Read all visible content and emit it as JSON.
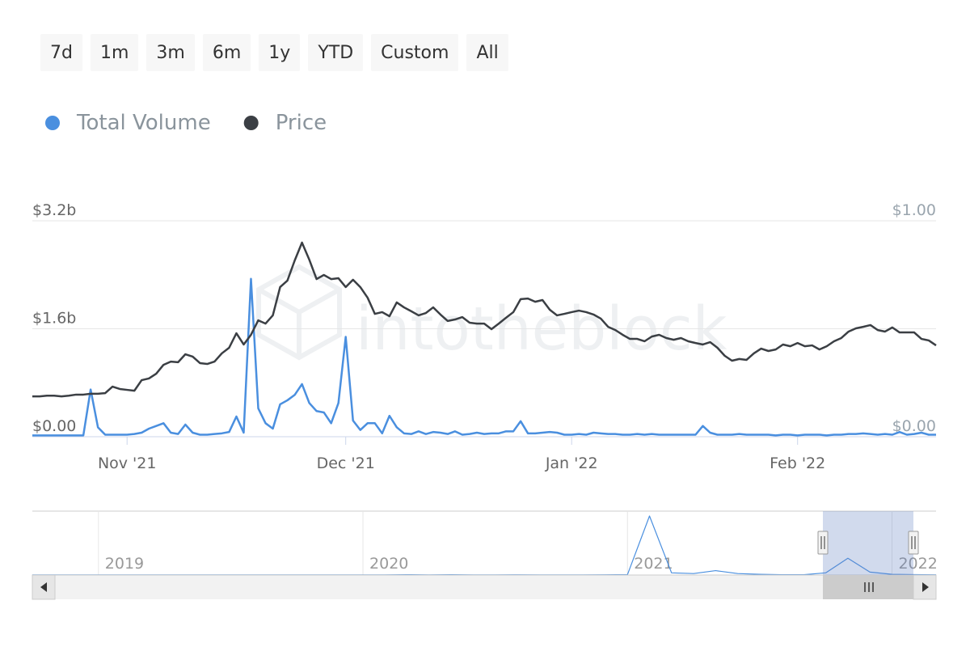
{
  "range_buttons": [
    "7d",
    "1m",
    "3m",
    "6m",
    "1y",
    "YTD",
    "Custom",
    "All"
  ],
  "watermark": "intotheblock",
  "chart_data": [
    {
      "type": "line",
      "categories": [
        null,
        null,
        null,
        null,
        null,
        null,
        null,
        null,
        null,
        null,
        null,
        null,
        null,
        "Nov '21",
        null,
        null,
        null,
        null,
        null,
        null,
        null,
        null,
        null,
        null,
        null,
        null,
        null,
        null,
        null,
        null,
        null,
        null,
        null,
        null,
        null,
        null,
        null,
        null,
        null,
        null,
        null,
        null,
        null,
        "Dec '21",
        null,
        null,
        null,
        null,
        null,
        null,
        null,
        null,
        null,
        null,
        null,
        null,
        null,
        null,
        null,
        null,
        null,
        null,
        null,
        null,
        null,
        null,
        null,
        null,
        null,
        null,
        null,
        null,
        null,
        null,
        "Jan '22",
        null,
        null,
        null,
        null,
        null,
        null,
        null,
        null,
        null,
        null,
        null,
        null,
        null,
        null,
        null,
        null,
        null,
        null,
        null,
        null,
        null,
        null,
        null,
        null,
        null,
        null,
        null,
        null,
        null,
        null,
        "Feb '22",
        null,
        null,
        null,
        null,
        null,
        null,
        null,
        null,
        null,
        null,
        null,
        null,
        null,
        null,
        null,
        null,
        null,
        null,
        null
      ],
      "series": [
        {
          "name": "Total Volume",
          "color": "#4a8fdf",
          "values": [
            0.02,
            0.02,
            0.02,
            0.02,
            0.02,
            0.02,
            0.02,
            0.02,
            0.7,
            0.14,
            0.03,
            0.03,
            0.03,
            0.03,
            0.04,
            0.06,
            0.12,
            0.16,
            0.2,
            0.06,
            0.04,
            0.18,
            0.06,
            0.03,
            0.03,
            0.04,
            0.05,
            0.07,
            0.3,
            0.06,
            2.34,
            0.42,
            0.2,
            0.12,
            0.48,
            0.54,
            0.62,
            0.78,
            0.5,
            0.38,
            0.36,
            0.2,
            0.5,
            1.48,
            0.24,
            0.1,
            0.2,
            0.2,
            0.05,
            0.31,
            0.14,
            0.05,
            0.04,
            0.08,
            0.04,
            0.07,
            0.06,
            0.04,
            0.08,
            0.03,
            0.04,
            0.06,
            0.04,
            0.05,
            0.05,
            0.08,
            0.08,
            0.23,
            0.05,
            0.05,
            0.06,
            0.07,
            0.06,
            0.03,
            0.03,
            0.04,
            0.03,
            0.06,
            0.05,
            0.04,
            0.04,
            0.03,
            0.03,
            0.04,
            0.03,
            0.04,
            0.03,
            0.03,
            0.03,
            0.03,
            0.03,
            0.03,
            0.16,
            0.06,
            0.03,
            0.03,
            0.03,
            0.04,
            0.03,
            0.03,
            0.03,
            0.03,
            0.02,
            0.03,
            0.03,
            0.02,
            0.03,
            0.03,
            0.03,
            0.02,
            0.03,
            0.03,
            0.04,
            0.04,
            0.05,
            0.04,
            0.03,
            0.04,
            0.03,
            0.07,
            0.03,
            0.04,
            0.06,
            0.03,
            0.03
          ]
        },
        {
          "name": "Price",
          "color": "#3b3f44",
          "axis": "y2",
          "values": [
            0.187,
            0.187,
            0.19,
            0.19,
            0.187,
            0.19,
            0.195,
            0.195,
            0.199,
            0.199,
            0.202,
            0.232,
            0.221,
            0.217,
            0.213,
            0.262,
            0.27,
            0.292,
            0.333,
            0.348,
            0.345,
            0.382,
            0.371,
            0.341,
            0.337,
            0.348,
            0.386,
            0.412,
            0.479,
            0.427,
            0.472,
            0.539,
            0.524,
            0.562,
            0.693,
            0.723,
            0.816,
            0.899,
            0.82,
            0.73,
            0.749,
            0.73,
            0.734,
            0.693,
            0.727,
            0.693,
            0.644,
            0.569,
            0.577,
            0.558,
            0.622,
            0.599,
            0.581,
            0.562,
            0.573,
            0.599,
            0.566,
            0.536,
            0.543,
            0.554,
            0.528,
            0.524,
            0.524,
            0.498,
            0.524,
            0.551,
            0.577,
            0.637,
            0.64,
            0.625,
            0.633,
            0.588,
            0.562,
            0.569,
            0.577,
            0.584,
            0.577,
            0.566,
            0.547,
            0.509,
            0.494,
            0.472,
            0.453,
            0.453,
            0.442,
            0.464,
            0.472,
            0.457,
            0.449,
            0.457,
            0.442,
            0.434,
            0.427,
            0.438,
            0.412,
            0.375,
            0.352,
            0.36,
            0.356,
            0.386,
            0.408,
            0.397,
            0.404,
            0.427,
            0.419,
            0.434,
            0.419,
            0.423,
            0.404,
            0.419,
            0.442,
            0.457,
            0.487,
            0.502,
            0.509,
            0.517,
            0.494,
            0.487,
            0.506,
            0.483,
            0.483,
            0.483,
            0.453,
            0.446,
            0.423
          ]
        }
      ],
      "ylim": [
        0,
        3.2
      ],
      "yticks": [
        {
          "value": 0,
          "label": "$0.00"
        },
        {
          "value": 1.6,
          "label": "$1.6b"
        },
        {
          "value": 3.2,
          "label": "$3.2b"
        }
      ],
      "y2lim": [
        0,
        1
      ],
      "y2ticks": [
        {
          "value": 0,
          "label": "$0.00"
        },
        {
          "value": 1,
          "label": "$1.00"
        }
      ],
      "grid": true
    },
    {
      "type": "line",
      "categories": [
        null,
        null,
        null,
        "2019",
        null,
        null,
        null,
        null,
        null,
        null,
        null,
        null,
        null,
        null,
        null,
        "2020",
        null,
        null,
        null,
        null,
        null,
        null,
        null,
        null,
        null,
        null,
        null,
        "2021",
        null,
        null,
        null,
        null,
        null,
        null,
        null,
        null,
        null,
        null,
        null,
        "2022",
        null,
        null
      ],
      "series": [
        {
          "color": "#4a8fdf",
          "values": [
            0.01,
            0.01,
            0.01,
            0.01,
            0.02,
            0.01,
            0.02,
            0.02,
            0.01,
            0.02,
            0.02,
            0.01,
            0.02,
            0.02,
            0.02,
            0.02,
            0.02,
            0.05,
            0.02,
            0.04,
            0.02,
            0.02,
            0.03,
            0.02,
            0.02,
            0.02,
            0.03,
            0.05,
            8.1,
            0.3,
            0.2,
            0.6,
            0.2,
            0.1,
            0.05,
            0.04,
            0.3,
            2.3,
            0.4,
            0.1,
            0.06,
            0.03
          ]
        }
      ]
    }
  ]
}
